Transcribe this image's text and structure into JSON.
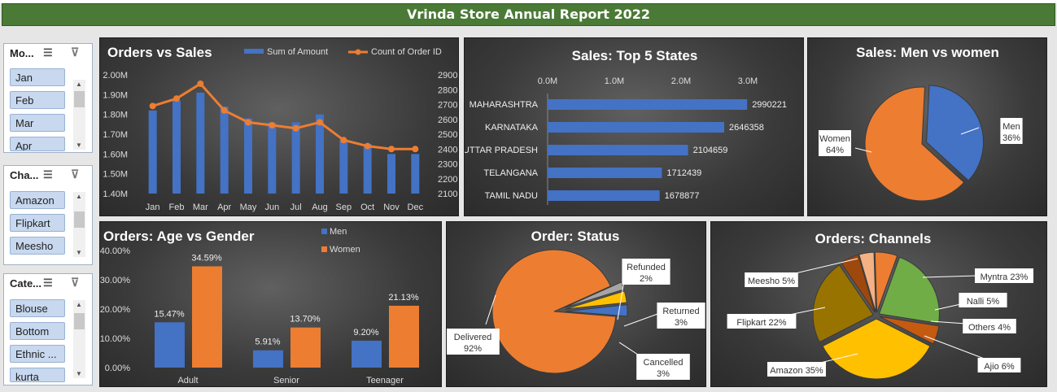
{
  "report_title": "Vrinda Store Annual Report 2022",
  "slicers": [
    {
      "title": "Mo...",
      "items": [
        "Jan",
        "Feb",
        "Mar",
        "Apr"
      ]
    },
    {
      "title": "Cha...",
      "items": [
        "Amazon",
        "Flipkart",
        "Meesho"
      ]
    },
    {
      "title": "Cate...",
      "items": [
        "Blouse",
        "Bottom",
        "Ethnic ...",
        "kurta"
      ]
    }
  ],
  "colors": {
    "blue": "#4472c4",
    "orange": "#ed7d31",
    "gray": "#a5a5a5",
    "yellow": "#ffc000",
    "green": "#70ad47",
    "darkred": "#9e480e",
    "olive": "#997300",
    "lightorange": "#f4b183",
    "brown": "#c55a11"
  },
  "chart_data": [
    {
      "type": "bar+line",
      "title": "Orders vs Sales",
      "categories": [
        "Jan",
        "Feb",
        "Mar",
        "Apr",
        "May",
        "Jun",
        "Jul",
        "Aug",
        "Sep",
        "Oct",
        "Nov",
        "Dec"
      ],
      "series": [
        {
          "name": "Sum of Amount",
          "type": "bar",
          "axis": "left",
          "values": [
            1.82,
            1.87,
            1.91,
            1.84,
            1.78,
            1.76,
            1.76,
            1.8,
            1.67,
            1.65,
            1.6,
            1.6
          ]
        },
        {
          "name": "Count of Order ID",
          "type": "line",
          "axis": "right",
          "values": [
            2690,
            2740,
            2840,
            2660,
            2580,
            2560,
            2540,
            2580,
            2460,
            2420,
            2400,
            2400
          ]
        }
      ],
      "y_left_ticks": [
        "1.40M",
        "1.50M",
        "1.60M",
        "1.70M",
        "1.80M",
        "1.90M",
        "2.00M"
      ],
      "y_left_range": [
        1.4,
        2.0
      ],
      "y_right_ticks": [
        "2100",
        "2200",
        "2300",
        "2400",
        "2500",
        "2600",
        "2700",
        "2800",
        "2900"
      ],
      "y_right_range": [
        2100,
        2900
      ]
    },
    {
      "type": "bar-horizontal",
      "title": "Sales: Top 5 States",
      "categories": [
        "MAHARASHTRA",
        "KARNATAKA",
        "UTTAR PRADESH",
        "TELANGANA",
        "TAMIL NADU"
      ],
      "values": [
        2990221,
        2646358,
        2104659,
        1712439,
        1678877
      ],
      "data_labels": [
        "2990221",
        "2646358",
        "2104659",
        "1712439",
        "1678877"
      ],
      "x_ticks": [
        "0.0M",
        "1.0M",
        "2.0M",
        "3.0M"
      ],
      "xlim": [
        0,
        3000000
      ]
    },
    {
      "type": "pie",
      "title": "Sales: Men vs women",
      "labels": [
        "Men",
        "Women"
      ],
      "values": [
        36,
        64
      ],
      "data_labels": [
        "Men\n36%",
        "Women\n64%"
      ]
    },
    {
      "type": "bar",
      "title": "Orders: Age vs Gender",
      "categories": [
        "Adult",
        "Senior",
        "Teenager"
      ],
      "series": [
        {
          "name": "Men",
          "values": [
            15.47,
            5.91,
            9.2
          ],
          "labels": [
            "15.47%",
            "5.91%",
            "9.20%"
          ]
        },
        {
          "name": "Women",
          "values": [
            34.59,
            13.7,
            21.13
          ],
          "labels": [
            "34.59%",
            "13.70%",
            "21.13%"
          ]
        }
      ],
      "y_ticks": [
        "0.00%",
        "10.00%",
        "20.00%",
        "30.00%",
        "40.00%"
      ],
      "ylim": [
        0,
        40
      ]
    },
    {
      "type": "pie",
      "title": "Order: Status",
      "labels": [
        "Delivered",
        "Refunded",
        "Returned",
        "Cancelled"
      ],
      "values": [
        92,
        2,
        3,
        3
      ],
      "data_labels": [
        "Delivered\n92%",
        "Refunded\n2%",
        "Returned\n3%",
        "Cancelled\n3%"
      ]
    },
    {
      "type": "pie",
      "title": "Orders: Channels",
      "labels": [
        "Amazon",
        "Myntra",
        "Nalli",
        "Others",
        "Ajio",
        "Flipkart",
        "Meesho"
      ],
      "values": [
        35,
        23,
        5,
        4,
        6,
        22,
        5
      ],
      "data_labels": [
        "Amazon 35%",
        "Myntra 23%",
        "Nalli 5%",
        "Others 4%",
        "Ajio 6%",
        "Flipkart 22%",
        "Meesho 5%"
      ]
    }
  ]
}
